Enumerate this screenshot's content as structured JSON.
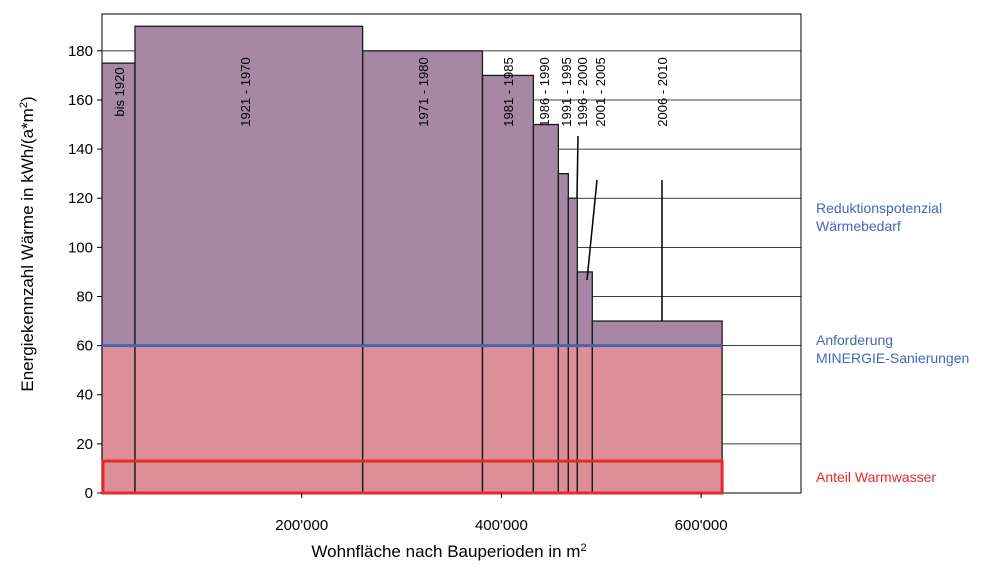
{
  "chart_data": {
    "type": "bar",
    "xlabel": "Wohnfläche nach Bauperioden in m",
    "xlabel_sup": "2",
    "ylabel": "Energiekennzahl Wärme in kWh/(a*m",
    "ylabel_sup": "2",
    "ylabel_end": ")",
    "xlim": [
      0,
      700000
    ],
    "ylim": [
      0,
      195
    ],
    "x_ticks": [
      {
        "value": 200000,
        "label": "200'000"
      },
      {
        "value": 400000,
        "label": "400'000"
      },
      {
        "value": 600000,
        "label": "600'000"
      }
    ],
    "y_ticks": [
      0,
      20,
      40,
      60,
      80,
      100,
      120,
      140,
      160,
      180
    ],
    "grid": "horizontal",
    "bars": [
      {
        "label": "bis 1920",
        "x_start": 0,
        "x_end": 33000,
        "value": 175
      },
      {
        "label": "1921 - 1970",
        "x_start": 33000,
        "x_end": 261000,
        "value": 190
      },
      {
        "label": "1971 - 1980",
        "x_start": 261000,
        "x_end": 381000,
        "value": 180
      },
      {
        "label": "1981 - 1985",
        "x_start": 381000,
        "x_end": 432000,
        "value": 170
      },
      {
        "label": "1986 - 1990",
        "x_start": 432000,
        "x_end": 457000,
        "value": 150
      },
      {
        "label": "1991 - 1995",
        "x_start": 457000,
        "x_end": 467000,
        "value": 130
      },
      {
        "label": "1996 - 2000",
        "x_start": 467000,
        "x_end": 476000,
        "value": 120
      },
      {
        "label": "2001 - 2005",
        "x_start": 476000,
        "x_end": 491000,
        "value": 90
      },
      {
        "label": "2006 - 2010",
        "x_start": 491000,
        "x_end": 621000,
        "value": 70
      }
    ],
    "requirement_line": {
      "value": 60,
      "label_line1": "Anforderung",
      "label_line2": "MINERGIE-Sanierungen",
      "color": "#4466bb"
    },
    "reduction_label": {
      "line1": "Reduktionspotenzial",
      "line2": "Wärmebedarf",
      "color": "#4466bb"
    },
    "hot_water": {
      "value": 13,
      "label": "Anteil Warmwasser",
      "color": "#e8282a"
    },
    "colors": {
      "upper_fill": "#a687a4",
      "lower_fill": "#dd8f98",
      "bar_stroke": "#1a1a1a",
      "grid": "#000000"
    }
  }
}
